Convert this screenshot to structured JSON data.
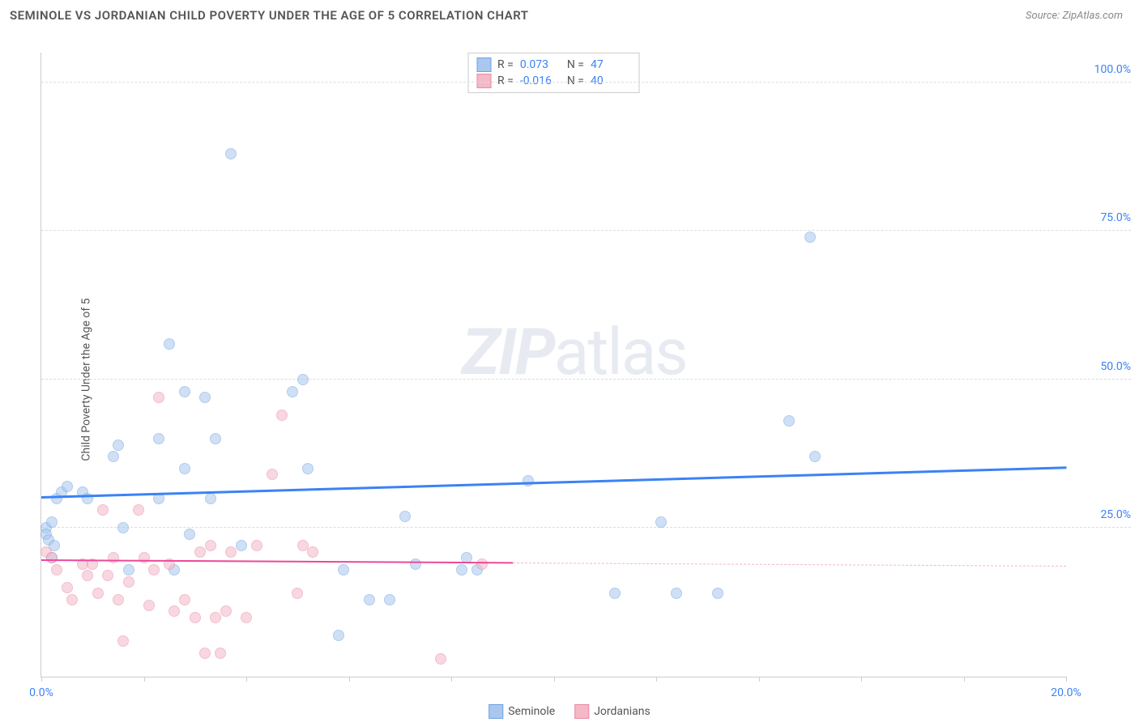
{
  "header": {
    "title": "SEMINOLE VS JORDANIAN CHILD POVERTY UNDER THE AGE OF 5 CORRELATION CHART",
    "source_prefix": "Source: ",
    "source_name": "ZipAtlas.com"
  },
  "chart": {
    "type": "scatter",
    "y_axis_label": "Child Poverty Under the Age of 5",
    "background_color": "#ffffff",
    "grid_color": "#dddddd",
    "axis_color": "#cccccc",
    "xlim": [
      0,
      20
    ],
    "ylim": [
      0,
      105
    ],
    "x_ticks": [
      0,
      2,
      4,
      6,
      8,
      10,
      12,
      14,
      16,
      18,
      20
    ],
    "x_tick_labels_shown": {
      "0": "0.0%",
      "20": "20.0%"
    },
    "x_tick_label_color": "#3b82f6",
    "y_ticks": [
      25,
      50,
      75,
      100
    ],
    "y_tick_labels": {
      "25": "25.0%",
      "50": "50.0%",
      "75": "75.0%",
      "100": "100.0%"
    },
    "y_tick_label_color": "#3b82f6",
    "point_radius": 7,
    "point_opacity": 0.55,
    "watermark": {
      "bold": "ZIP",
      "rest": "atlas"
    },
    "series": [
      {
        "name": "Seminole",
        "color_fill": "#a9c7ef",
        "color_stroke": "#6fa3e0",
        "trend": {
          "y_start": 30,
          "y_end": 35,
          "color": "#3b82f6",
          "width": 2.5,
          "x_end_frac": 1.0,
          "dash_after": null
        },
        "stats": {
          "R": "0.073",
          "N": "47"
        },
        "points": [
          [
            0.1,
            25
          ],
          [
            0.1,
            24
          ],
          [
            0.15,
            23
          ],
          [
            0.2,
            26
          ],
          [
            0.2,
            20
          ],
          [
            0.25,
            22
          ],
          [
            0.3,
            30
          ],
          [
            0.4,
            31
          ],
          [
            0.5,
            32
          ],
          [
            0.8,
            31
          ],
          [
            0.9,
            30
          ],
          [
            1.4,
            37
          ],
          [
            1.5,
            39
          ],
          [
            1.6,
            25
          ],
          [
            1.7,
            18
          ],
          [
            2.3,
            40
          ],
          [
            2.3,
            30
          ],
          [
            2.5,
            56
          ],
          [
            2.6,
            18
          ],
          [
            2.8,
            35
          ],
          [
            2.8,
            48
          ],
          [
            2.9,
            24
          ],
          [
            3.2,
            47
          ],
          [
            3.3,
            30
          ],
          [
            3.4,
            40
          ],
          [
            3.7,
            88
          ],
          [
            3.9,
            22
          ],
          [
            4.9,
            48
          ],
          [
            5.1,
            50
          ],
          [
            5.2,
            35
          ],
          [
            5.8,
            7
          ],
          [
            5.9,
            18
          ],
          [
            6.4,
            13
          ],
          [
            6.8,
            13
          ],
          [
            7.1,
            27
          ],
          [
            7.3,
            19
          ],
          [
            8.2,
            18
          ],
          [
            8.3,
            20
          ],
          [
            8.5,
            18
          ],
          [
            9.5,
            33
          ],
          [
            11.2,
            14
          ],
          [
            12.1,
            26
          ],
          [
            12.4,
            14
          ],
          [
            13.2,
            14
          ],
          [
            14.6,
            43
          ],
          [
            15.0,
            74
          ],
          [
            15.1,
            37
          ]
        ]
      },
      {
        "name": "Jordanians",
        "color_fill": "#f4b8c7",
        "color_stroke": "#e88aa5",
        "trend": {
          "y_start": 19.5,
          "y_end": 18.5,
          "color": "#ec4899",
          "width": 2,
          "x_end_frac": 0.46,
          "dash_after": {
            "color": "#f4b8c7"
          }
        },
        "stats": {
          "R": "-0.016",
          "N": "40"
        },
        "points": [
          [
            0.1,
            21
          ],
          [
            0.2,
            20
          ],
          [
            0.3,
            18
          ],
          [
            0.5,
            15
          ],
          [
            0.6,
            13
          ],
          [
            0.8,
            19
          ],
          [
            0.9,
            17
          ],
          [
            1.0,
            19
          ],
          [
            1.1,
            14
          ],
          [
            1.2,
            28
          ],
          [
            1.3,
            17
          ],
          [
            1.4,
            20
          ],
          [
            1.5,
            13
          ],
          [
            1.6,
            6
          ],
          [
            1.7,
            16
          ],
          [
            1.9,
            28
          ],
          [
            2.0,
            20
          ],
          [
            2.1,
            12
          ],
          [
            2.2,
            18
          ],
          [
            2.3,
            47
          ],
          [
            2.5,
            19
          ],
          [
            2.6,
            11
          ],
          [
            2.8,
            13
          ],
          [
            3.0,
            10
          ],
          [
            3.1,
            21
          ],
          [
            3.2,
            4
          ],
          [
            3.3,
            22
          ],
          [
            3.4,
            10
          ],
          [
            3.5,
            4
          ],
          [
            3.6,
            11
          ],
          [
            3.7,
            21
          ],
          [
            4.0,
            10
          ],
          [
            4.2,
            22
          ],
          [
            4.5,
            34
          ],
          [
            4.7,
            44
          ],
          [
            5.0,
            14
          ],
          [
            5.1,
            22
          ],
          [
            5.3,
            21
          ],
          [
            7.8,
            3
          ],
          [
            8.6,
            19
          ]
        ]
      }
    ],
    "stat_box": {
      "labels": {
        "R": "R =",
        "N": "N ="
      }
    },
    "legend_labels": {
      "seminole": "Seminole",
      "jordanians": "Jordanians"
    }
  }
}
